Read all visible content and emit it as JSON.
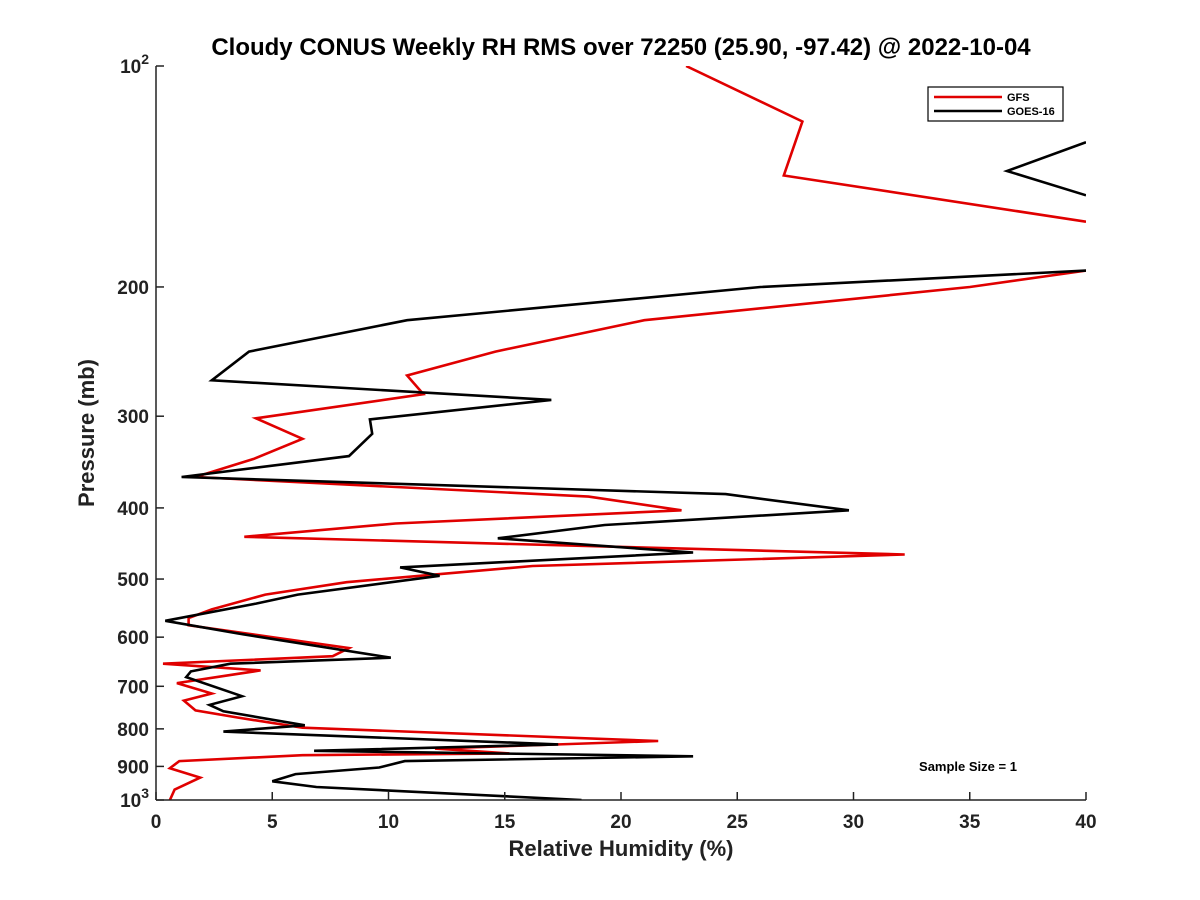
{
  "chart_data": {
    "type": "line",
    "title": "Cloudy CONUS Weekly RH RMS over 72250 (25.90, -97.42) @ 2022-10-04",
    "xlabel": "Relative Humidity (%)",
    "ylabel": "Pressure (mb)",
    "xlim": [
      0,
      40
    ],
    "ylim": [
      100,
      1000
    ],
    "yscale": "log",
    "y_reversed": true,
    "grid": false,
    "legend_position": "top-right",
    "xticks": [
      "0",
      "5",
      "10",
      "15",
      "20",
      "25",
      "30",
      "35",
      "40"
    ],
    "yticks": [
      {
        "value": 100,
        "base": "10",
        "exp": "2"
      },
      {
        "value": 200,
        "label": "200"
      },
      {
        "value": 300,
        "label": "300"
      },
      {
        "value": 400,
        "label": "400"
      },
      {
        "value": 500,
        "label": "500"
      },
      {
        "value": 600,
        "label": "600"
      },
      {
        "value": 700,
        "label": "700"
      },
      {
        "value": 800,
        "label": "800"
      },
      {
        "value": 900,
        "label": "900"
      },
      {
        "value": 1000,
        "base": "10",
        "exp": "3"
      }
    ],
    "annotation": "Sample Size = 1",
    "series": [
      {
        "name": "GFS",
        "color": "#e00000",
        "points": [
          [
            22.8,
            100
          ],
          [
            27.8,
            119
          ],
          [
            27.0,
            141
          ],
          [
            40.0,
            163
          ],
          null,
          [
            40.0,
            190
          ],
          [
            35.0,
            200
          ],
          [
            21.0,
            222
          ],
          [
            14.6,
            245
          ],
          [
            10.8,
            264
          ],
          [
            11.5,
            280
          ],
          [
            4.3,
            302
          ],
          [
            6.3,
            322
          ],
          [
            4.2,
            343
          ],
          [
            1.7,
            363
          ],
          [
            18.6,
            386
          ],
          [
            22.6,
            403
          ],
          [
            10.3,
            420
          ],
          [
            3.8,
            438
          ],
          [
            32.2,
            463
          ],
          [
            16.2,
            480
          ],
          [
            8.2,
            505
          ],
          [
            4.7,
            525
          ],
          [
            2.4,
            550
          ],
          [
            1.4,
            565
          ],
          [
            1.4,
            578
          ],
          [
            8.3,
            621
          ],
          [
            7.6,
            637
          ],
          [
            0.3,
            652
          ],
          [
            4.5,
            666
          ],
          [
            0.9,
            693
          ],
          [
            2.4,
            716
          ],
          [
            1.2,
            732
          ],
          [
            1.7,
            755
          ],
          [
            3.5,
            772
          ],
          [
            6.3,
            797
          ],
          [
            21.6,
            831
          ],
          [
            12.0,
            851
          ],
          [
            15.2,
            864
          ],
          [
            6.3,
            869
          ],
          [
            1.0,
            885
          ],
          [
            0.6,
            905
          ],
          [
            1.9,
            932
          ],
          [
            0.8,
            968
          ],
          [
            0.6,
            1000
          ]
        ]
      },
      {
        "name": "GOES-16",
        "color": "#000000",
        "points": [
          [
            40.0,
            127
          ],
          [
            36.6,
            139
          ],
          [
            40.0,
            150
          ],
          null,
          [
            40.0,
            190
          ],
          [
            26.0,
            200
          ],
          [
            10.8,
            222
          ],
          [
            4.0,
            245
          ],
          [
            2.4,
            268
          ],
          [
            17.0,
            285
          ],
          [
            9.2,
            303
          ],
          [
            9.3,
            317
          ],
          [
            8.3,
            340
          ],
          [
            1.1,
            363
          ],
          [
            24.5,
            383
          ],
          [
            29.8,
            403
          ],
          [
            19.3,
            422
          ],
          [
            14.7,
            440
          ],
          [
            23.1,
            460
          ],
          [
            10.5,
            482
          ],
          [
            12.2,
            495
          ],
          [
            6.1,
            525
          ],
          [
            4.3,
            540
          ],
          [
            0.4,
            570
          ],
          [
            3.5,
            593
          ],
          [
            10.1,
            640
          ],
          [
            3.2,
            652
          ],
          [
            1.5,
            668
          ],
          [
            1.3,
            680
          ],
          [
            3.7,
            722
          ],
          [
            2.3,
            742
          ],
          [
            2.9,
            757
          ],
          [
            6.4,
            791
          ],
          [
            2.9,
            807
          ],
          [
            17.3,
            840
          ],
          [
            6.8,
            857
          ],
          [
            23.1,
            872
          ],
          [
            10.7,
            885
          ],
          [
            9.6,
            903
          ],
          [
            6.0,
            922
          ],
          [
            5.0,
            943
          ],
          [
            6.9,
            960
          ],
          [
            18.3,
            1000
          ]
        ]
      }
    ]
  }
}
